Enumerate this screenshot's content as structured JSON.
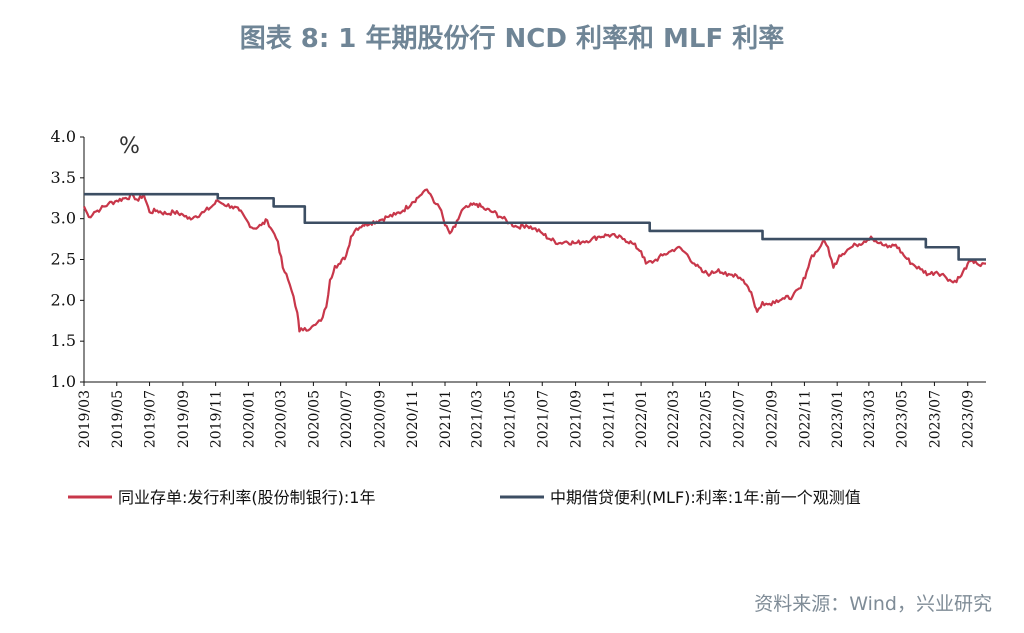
{
  "title": "图表 8:  1 年期股份行 NCD 利率和 MLF 利率",
  "source": "资料来源：Wind，兴业研究",
  "chart_data": {
    "type": "line",
    "unit_label": "%",
    "ylim": [
      1.0,
      4.0
    ],
    "y_ticks": [
      "1.0",
      "1.5",
      "2.0",
      "2.5",
      "3.0",
      "3.5",
      "4.0"
    ],
    "x_ticks": [
      "2019/03",
      "2019/05",
      "2019/07",
      "2019/09",
      "2019/11",
      "2020/01",
      "2020/03",
      "2020/05",
      "2020/07",
      "2020/09",
      "2020/11",
      "2021/01",
      "2021/03",
      "2021/05",
      "2021/07",
      "2021/09",
      "2021/11",
      "2022/01",
      "2022/03",
      "2022/05",
      "2022/07",
      "2022/09",
      "2022/11",
      "2023/01",
      "2023/03",
      "2023/05",
      "2023/07",
      "2023/09"
    ],
    "legend_position": "bottom",
    "series": [
      {
        "name": "同业存单:发行利率(股份制银行):1年",
        "color": "#c8374a",
        "type": "line",
        "points": [
          [
            "2019/03/01",
            3.15
          ],
          [
            "2019/03/10",
            3.02
          ],
          [
            "2019/03/20",
            3.08
          ],
          [
            "2019/04/01",
            3.12
          ],
          [
            "2019/04/15",
            3.18
          ],
          [
            "2019/05/01",
            3.22
          ],
          [
            "2019/05/15",
            3.25
          ],
          [
            "2019/06/01",
            3.28
          ],
          [
            "2019/06/10",
            3.22
          ],
          [
            "2019/06/20",
            3.3
          ],
          [
            "2019/07/01",
            3.08
          ],
          [
            "2019/07/15",
            3.1
          ],
          [
            "2019/08/01",
            3.06
          ],
          [
            "2019/08/15",
            3.08
          ],
          [
            "2019/09/01",
            3.05
          ],
          [
            "2019/09/10",
            3.0
          ],
          [
            "2019/09/25",
            3.03
          ],
          [
            "2019/10/10",
            3.08
          ],
          [
            "2019/10/25",
            3.15
          ],
          [
            "2019/11/05",
            3.22
          ],
          [
            "2019/11/15",
            3.18
          ],
          [
            "2019/12/01",
            3.15
          ],
          [
            "2019/12/15",
            3.1
          ],
          [
            "2020/01/01",
            2.95
          ],
          [
            "2020/01/10",
            2.88
          ],
          [
            "2020/01/25",
            2.92
          ],
          [
            "2020/02/05",
            2.98
          ],
          [
            "2020/02/15",
            2.85
          ],
          [
            "2020/02/25",
            2.72
          ],
          [
            "2020/03/05",
            2.4
          ],
          [
            "2020/03/15",
            2.25
          ],
          [
            "2020/03/25",
            2.05
          ],
          [
            "2020/04/01",
            1.85
          ],
          [
            "2020/04/05",
            1.62
          ],
          [
            "2020/04/15",
            1.66
          ],
          [
            "2020/04/25",
            1.65
          ],
          [
            "2020/05/05",
            1.7
          ],
          [
            "2020/05/15",
            1.75
          ],
          [
            "2020/05/25",
            1.92
          ],
          [
            "2020/06/01",
            2.25
          ],
          [
            "2020/06/10",
            2.42
          ],
          [
            "2020/06/20",
            2.45
          ],
          [
            "2020/07/01",
            2.55
          ],
          [
            "2020/07/10",
            2.78
          ],
          [
            "2020/07/20",
            2.88
          ],
          [
            "2020/08/01",
            2.92
          ],
          [
            "2020/08/15",
            2.95
          ],
          [
            "2020/09/01",
            2.98
          ],
          [
            "2020/09/15",
            3.02
          ],
          [
            "2020/10/01",
            3.05
          ],
          [
            "2020/10/15",
            3.1
          ],
          [
            "2020/11/01",
            3.2
          ],
          [
            "2020/11/15",
            3.28
          ],
          [
            "2020/11/25",
            3.35
          ],
          [
            "2020/12/05",
            3.3
          ],
          [
            "2020/12/15",
            3.18
          ],
          [
            "2020/12/25",
            3.1
          ],
          [
            "2021/01/01",
            2.92
          ],
          [
            "2021/01/10",
            2.82
          ],
          [
            "2021/01/20",
            2.9
          ],
          [
            "2021/02/01",
            3.1
          ],
          [
            "2021/02/15",
            3.15
          ],
          [
            "2021/03/01",
            3.18
          ],
          [
            "2021/03/15",
            3.12
          ],
          [
            "2021/04/01",
            3.08
          ],
          [
            "2021/04/15",
            3.02
          ],
          [
            "2021/05/01",
            2.95
          ],
          [
            "2021/05/15",
            2.9
          ],
          [
            "2021/06/01",
            2.92
          ],
          [
            "2021/06/15",
            2.88
          ],
          [
            "2021/07/01",
            2.82
          ],
          [
            "2021/07/15",
            2.75
          ],
          [
            "2021/08/01",
            2.7
          ],
          [
            "2021/08/15",
            2.72
          ],
          [
            "2021/09/01",
            2.7
          ],
          [
            "2021/09/15",
            2.72
          ],
          [
            "2021/10/01",
            2.75
          ],
          [
            "2021/10/15",
            2.78
          ],
          [
            "2021/11/01",
            2.8
          ],
          [
            "2021/11/15",
            2.78
          ],
          [
            "2021/12/01",
            2.75
          ],
          [
            "2021/12/15",
            2.7
          ],
          [
            "2022/01/01",
            2.6
          ],
          [
            "2022/01/10",
            2.45
          ],
          [
            "2022/01/25",
            2.48
          ],
          [
            "2022/02/10",
            2.55
          ],
          [
            "2022/02/25",
            2.6
          ],
          [
            "2022/03/10",
            2.65
          ],
          [
            "2022/03/25",
            2.58
          ],
          [
            "2022/04/10",
            2.45
          ],
          [
            "2022/04/25",
            2.35
          ],
          [
            "2022/05/10",
            2.32
          ],
          [
            "2022/05/25",
            2.38
          ],
          [
            "2022/06/10",
            2.3
          ],
          [
            "2022/06/25",
            2.32
          ],
          [
            "2022/07/10",
            2.25
          ],
          [
            "2022/07/25",
            2.1
          ],
          [
            "2022/08/01",
            1.92
          ],
          [
            "2022/08/05",
            1.86
          ],
          [
            "2022/08/15",
            1.98
          ],
          [
            "2022/08/25",
            1.95
          ],
          [
            "2022/09/10",
            2.0
          ],
          [
            "2022/09/25",
            2.02
          ],
          [
            "2022/10/10",
            2.05
          ],
          [
            "2022/10/25",
            2.15
          ],
          [
            "2022/11/05",
            2.35
          ],
          [
            "2022/11/15",
            2.55
          ],
          [
            "2022/11/25",
            2.6
          ],
          [
            "2022/12/05",
            2.72
          ],
          [
            "2022/12/15",
            2.65
          ],
          [
            "2022/12/25",
            2.4
          ],
          [
            "2023/01/05",
            2.55
          ],
          [
            "2023/01/20",
            2.62
          ],
          [
            "2023/02/05",
            2.68
          ],
          [
            "2023/02/20",
            2.72
          ],
          [
            "2023/03/05",
            2.78
          ],
          [
            "2023/03/20",
            2.7
          ],
          [
            "2023/04/05",
            2.65
          ],
          [
            "2023/04/20",
            2.68
          ],
          [
            "2023/05/05",
            2.55
          ],
          [
            "2023/05/20",
            2.45
          ],
          [
            "2023/06/05",
            2.38
          ],
          [
            "2023/06/20",
            2.32
          ],
          [
            "2023/07/05",
            2.35
          ],
          [
            "2023/07/20",
            2.3
          ],
          [
            "2023/08/05",
            2.22
          ],
          [
            "2023/08/20",
            2.3
          ],
          [
            "2023/09/01",
            2.45
          ],
          [
            "2023/09/15",
            2.48
          ],
          [
            "2023/09/25",
            2.42
          ],
          [
            "2023/10/05",
            2.45
          ]
        ]
      },
      {
        "name": "中期借贷便利(MLF):利率:1年:前一个观测值",
        "color": "#3c4e63",
        "type": "step",
        "points": [
          [
            "2019/03/01",
            3.3
          ],
          [
            "2019/11/05",
            3.25
          ],
          [
            "2020/02/17",
            3.15
          ],
          [
            "2020/04/15",
            2.95
          ],
          [
            "2022/01/17",
            2.85
          ],
          [
            "2022/08/15",
            2.75
          ],
          [
            "2023/06/15",
            2.65
          ],
          [
            "2023/08/15",
            2.5
          ],
          [
            "2023/10/05",
            2.5
          ]
        ]
      }
    ]
  }
}
